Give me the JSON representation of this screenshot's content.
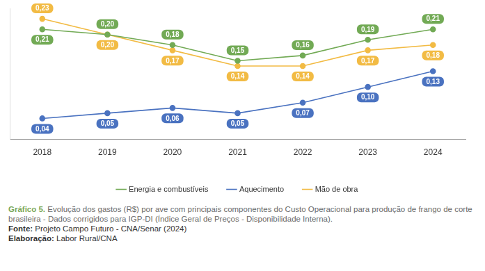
{
  "chart_data": {
    "type": "line",
    "title": "Gráfico 5.",
    "subtitle": "Evolução dos gastos (R$) por ave com principais componentes do Custo Operacional para produção de frango de corte brasileira - Dados corrigidos para IGP-DI (Índice Geral de Preços - Disponibilidade Interna).",
    "annotations": [
      "Fonte: Projeto Campo Futuro - CNA/Senar (2024)",
      "Elaboração: Labor Rural/CNA"
    ],
    "categories": [
      "2018",
      "2019",
      "2020",
      "2021",
      "2022",
      "2023",
      "2024"
    ],
    "series": [
      {
        "name": "Energia e combustíveis",
        "color": "#72aa55",
        "marker": "circle",
        "line_style": "solid",
        "values": [
          0.21,
          0.2,
          0.18,
          0.15,
          0.16,
          0.19,
          0.21
        ],
        "value_labels": [
          "0,21",
          "0,20",
          "0,18",
          "0,15",
          "0,16",
          "0,19",
          "0,21"
        ]
      },
      {
        "name": "Aquecimento",
        "color": "#4a72c0",
        "marker": "circle",
        "line_style": "solid",
        "values": [
          0.04,
          0.05,
          0.06,
          0.05,
          0.07,
          0.1,
          0.13
        ],
        "value_labels": [
          "0,04",
          "0,05",
          "0,06",
          "0,05",
          "0,07",
          "0,10",
          "0,13"
        ]
      },
      {
        "name": "Mão de obra",
        "color": "#f2bb44",
        "marker": "circle",
        "line_style": "solid",
        "values": [
          0.23,
          0.2,
          0.17,
          0.14,
          0.14,
          0.17,
          0.18
        ],
        "value_labels": [
          "0,23",
          "0,20",
          "0,17",
          "0,14",
          "0,14",
          "0,17",
          "0,18"
        ]
      }
    ],
    "ylim": [
      0,
      0.25
    ],
    "grid": false,
    "legend": "bottom",
    "data_labels": true,
    "tick_labels": "x"
  }
}
